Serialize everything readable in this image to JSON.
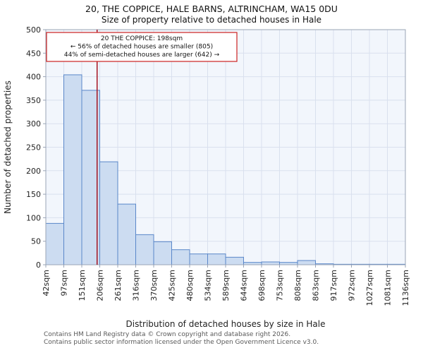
{
  "page": {
    "title": "20, THE COPPICE, HALE BARNS, ALTRINCHAM, WA15 0DU",
    "subtitle": "Size of property relative to detached houses in Hale",
    "footer_line1": "Contains HM Land Registry data © Crown copyright and database right 2026.",
    "footer_line2": "Contains public sector information licensed under the Open Government Licence v3.0."
  },
  "chart_data": {
    "type": "bar",
    "title": "20, THE COPPICE, HALE BARNS, ALTRINCHAM, WA15 0DU",
    "subtitle": "Size of property relative to detached houses in Hale",
    "xlabel": "Distribution of detached houses by size in Hale",
    "ylabel": "Number of detached properties",
    "bin_edges_sqm": [
      42,
      97,
      151,
      206,
      261,
      316,
      370,
      425,
      480,
      534,
      589,
      644,
      698,
      753,
      808,
      863,
      917,
      972,
      1027,
      1081,
      1136
    ],
    "bin_labels": [
      "42sqm",
      "97sqm",
      "151sqm",
      "206sqm",
      "261sqm",
      "316sqm",
      "370sqm",
      "425sqm",
      "480sqm",
      "534sqm",
      "589sqm",
      "644sqm",
      "698sqm",
      "753sqm",
      "808sqm",
      "863sqm",
      "917sqm",
      "972sqm",
      "1027sqm",
      "1081sqm",
      "1136sqm"
    ],
    "values": [
      88,
      404,
      371,
      219,
      129,
      64,
      49,
      32,
      23,
      23,
      16,
      5,
      6,
      5,
      9,
      2,
      1,
      1,
      1,
      1
    ],
    "ylim": [
      0,
      500
    ],
    "yticks": [
      0,
      50,
      100,
      150,
      200,
      250,
      300,
      350,
      400,
      450,
      500
    ],
    "grid": true,
    "legend": "none",
    "marker": {
      "value_sqm": 198,
      "label": "20 THE COPPICE: 198sqm"
    },
    "annotation_lines": [
      "20 THE COPPICE: 198sqm",
      "← 56% of detached houses are smaller (805)",
      "44% of semi-detached houses are larger (642) →"
    ],
    "colors": {
      "bar_fill": "#ccdcf1",
      "bar_stroke": "#5a87c9",
      "marker_line": "#a51220",
      "annotation_border": "#cc2222",
      "plot_bg": "#f2f6fc",
      "grid": "#d9e0ee",
      "axis": "#9aa4b6",
      "text": "#222222",
      "footer_text": "#595959"
    }
  }
}
